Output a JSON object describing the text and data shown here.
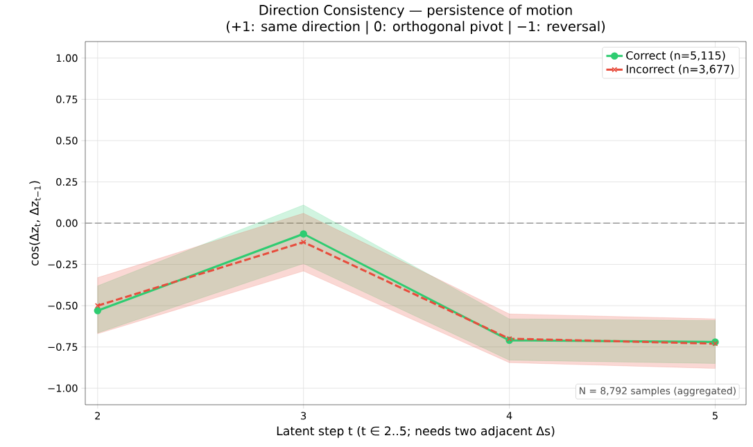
{
  "chart_data": {
    "type": "line",
    "title": "Direction Consistency — persistence of motion",
    "subtitle": "(+1: same direction  |  0: orthogonal pivot  |  −1: reversal)",
    "xlabel": "Latent step t  (t ∈ 2..5; needs two adjacent Δs)",
    "ylabel": "cos(Δz$_{t}$, Δz$_{t−1}$)",
    "x": [
      2,
      3,
      4,
      5
    ],
    "series": [
      {
        "name": "Correct (n=5,115)",
        "color": "#2ecc71",
        "marker": "circle",
        "line_style": "solid",
        "values": [
          -0.53,
          -0.065,
          -0.71,
          -0.72
        ],
        "lower": [
          -0.665,
          -0.245,
          -0.83,
          -0.85
        ],
        "upper": [
          -0.38,
          0.11,
          -0.58,
          -0.59
        ]
      },
      {
        "name": "Incorrect (n=3,677)",
        "color": "#e74c3c",
        "marker": "cross",
        "line_style": "dashed",
        "values": [
          -0.5,
          -0.115,
          -0.7,
          -0.73
        ],
        "lower": [
          -0.67,
          -0.29,
          -0.845,
          -0.88
        ],
        "upper": [
          -0.33,
          0.06,
          -0.55,
          -0.58
        ]
      }
    ],
    "xlim": [
      1.94,
      5.15
    ],
    "ylim": [
      -1.1,
      1.1
    ],
    "xticks": [
      2,
      3,
      4,
      5
    ],
    "yticks": [
      {
        "value": -1,
        "label": "−1.00"
      },
      {
        "value": -0.75,
        "label": "−0.75"
      },
      {
        "value": -0.5,
        "label": "−0.50"
      },
      {
        "value": -0.25,
        "label": "−0.25"
      },
      {
        "value": 0,
        "label": "0.00"
      },
      {
        "value": 0.25,
        "label": "0.25"
      },
      {
        "value": 0.5,
        "label": "0.50"
      },
      {
        "value": 0.75,
        "label": "0.75"
      },
      {
        "value": 1,
        "label": "1.00"
      }
    ],
    "ref_lines": [
      {
        "axis": "y",
        "value": 0,
        "color": "#999999",
        "line_style": "dashed"
      }
    ],
    "annotations": [
      "N = 8,792 samples (aggregated)"
    ],
    "grid": true,
    "legend": "top right"
  }
}
